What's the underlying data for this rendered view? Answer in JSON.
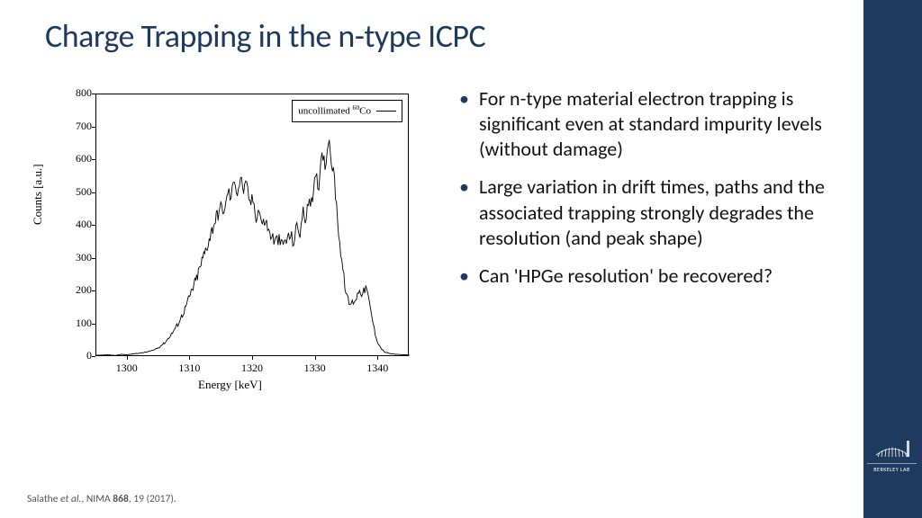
{
  "title": "Charge Trapping in the n-type ICPC",
  "right_bar_color": "#1f3a5f",
  "logo": {
    "top": "▲",
    "dots": "||||||||",
    "text": "BERKELEY LAB"
  },
  "bullets": [
    "For n-type material electron trapping is significant even at standard impurity levels (without damage)",
    "Large variation in drift times, paths and the associated trapping strongly degrades the resolution (and peak shape)",
    "Can 'HPGe resolution' be recovered?"
  ],
  "citation": {
    "authors": "Salathe",
    "etal": "et al.",
    "rest": ", NIMA ",
    "vol": "868",
    "tail": ", 19 (2017)."
  },
  "chart": {
    "type": "line",
    "xlabel": "Energy [keV]",
    "ylabel": "Counts [a.u.]",
    "legend": {
      "text_pre": "uncollimated ",
      "sup": "60",
      "text_post": "Co"
    },
    "xlim": [
      1295,
      1345
    ],
    "ylim": [
      0,
      800
    ],
    "xticks": [
      1300,
      1310,
      1320,
      1330,
      1340
    ],
    "yticks": [
      0,
      100,
      200,
      300,
      400,
      500,
      600,
      700,
      800
    ],
    "line_color": "#000000",
    "background_color": "#ffffff",
    "data": [
      [
        1295,
        5
      ],
      [
        1296,
        6
      ],
      [
        1297,
        7
      ],
      [
        1298,
        5
      ],
      [
        1299,
        8
      ],
      [
        1300,
        7
      ],
      [
        1301,
        10
      ],
      [
        1302,
        12
      ],
      [
        1303,
        15
      ],
      [
        1304,
        20
      ],
      [
        1305,
        30
      ],
      [
        1306,
        45
      ],
      [
        1307,
        70
      ],
      [
        1308,
        100
      ],
      [
        1309,
        140
      ],
      [
        1310,
        190
      ],
      [
        1311,
        240
      ],
      [
        1312,
        300
      ],
      [
        1313,
        360
      ],
      [
        1314,
        420
      ],
      [
        1315,
        460
      ],
      [
        1315.5,
        440
      ],
      [
        1316,
        510
      ],
      [
        1316.5,
        480
      ],
      [
        1317,
        550
      ],
      [
        1317.5,
        500
      ],
      [
        1318,
        545
      ],
      [
        1318.5,
        510
      ],
      [
        1319,
        520
      ],
      [
        1319.5,
        470
      ],
      [
        1320,
        480
      ],
      [
        1320.5,
        430
      ],
      [
        1321,
        450
      ],
      [
        1321.5,
        400
      ],
      [
        1322,
        420
      ],
      [
        1322.5,
        380
      ],
      [
        1323,
        370
      ],
      [
        1323.5,
        350
      ],
      [
        1324,
        360
      ],
      [
        1324.5,
        340
      ],
      [
        1325,
        350
      ],
      [
        1325.5,
        360
      ],
      [
        1326,
        370
      ],
      [
        1326.5,
        350
      ],
      [
        1327,
        400
      ],
      [
        1327.5,
        380
      ],
      [
        1328,
        440
      ],
      [
        1328.5,
        420
      ],
      [
        1329,
        490
      ],
      [
        1329.5,
        460
      ],
      [
        1330,
        560
      ],
      [
        1330.5,
        520
      ],
      [
        1331,
        640
      ],
      [
        1331.5,
        580
      ],
      [
        1332,
        660
      ],
      [
        1332.5,
        600
      ],
      [
        1333,
        540
      ],
      [
        1333.5,
        420
      ],
      [
        1334,
        320
      ],
      [
        1334.5,
        240
      ],
      [
        1335,
        180
      ],
      [
        1335.5,
        160
      ],
      [
        1336,
        170
      ],
      [
        1336.5,
        180
      ],
      [
        1337,
        210
      ],
      [
        1337.5,
        190
      ],
      [
        1338,
        215
      ],
      [
        1338.5,
        170
      ],
      [
        1339,
        120
      ],
      [
        1339.5,
        70
      ],
      [
        1340,
        40
      ],
      [
        1340.5,
        25
      ],
      [
        1341,
        15
      ],
      [
        1342,
        10
      ],
      [
        1343,
        8
      ],
      [
        1344,
        7
      ],
      [
        1345,
        6
      ]
    ],
    "noise_amp": 22
  }
}
